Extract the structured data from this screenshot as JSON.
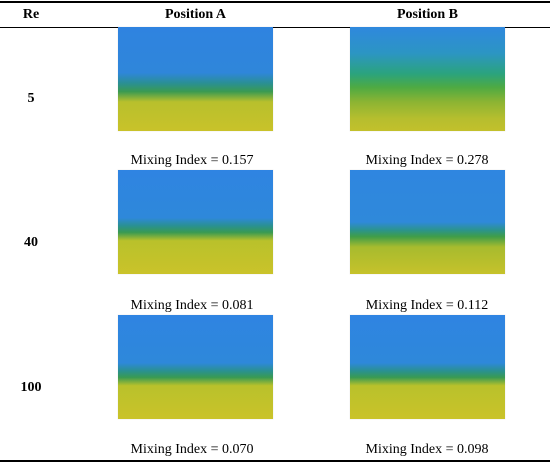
{
  "table": {
    "headers": {
      "re": "Re",
      "position_a": "Position A",
      "position_b": "Position B"
    },
    "rows": [
      {
        "re": "5",
        "position_a": {
          "mixing_index": "Mixing Index = 0.157"
        },
        "position_b": {
          "mixing_index": "Mixing Index = 0.278"
        }
      },
      {
        "re": "40",
        "position_a": {
          "mixing_index": "Mixing Index = 0.081"
        },
        "position_b": {
          "mixing_index": "Mixing Index = 0.112"
        }
      },
      {
        "re": "100",
        "position_a": {
          "mixing_index": "Mixing Index = 0.070"
        },
        "position_b": {
          "mixing_index": "Mixing Index = 0.098"
        }
      }
    ]
  },
  "colors": {
    "dye_blue": "#2f85e0",
    "dye_green": "#3a9a52",
    "dye_yellow": "#c8c22a"
  }
}
